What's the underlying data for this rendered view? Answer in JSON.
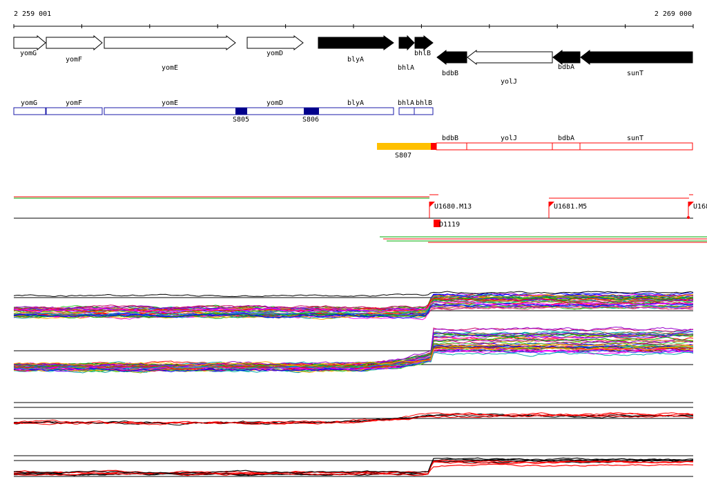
{
  "coords": {
    "start": "2 259 001",
    "end": "2 269 000"
  },
  "genes": [
    {
      "name": "yomG",
      "dir": "fwd",
      "filled": false
    },
    {
      "name": "yomF",
      "dir": "fwd",
      "filled": false
    },
    {
      "name": "yomE",
      "dir": "fwd",
      "filled": false
    },
    {
      "name": "yomD",
      "dir": "fwd",
      "filled": false
    },
    {
      "name": "blyA",
      "dir": "fwd",
      "filled": true
    },
    {
      "name": "bhlA",
      "dir": "fwd",
      "filled": true
    },
    {
      "name": "bhlB",
      "dir": "fwd",
      "filled": true
    },
    {
      "name": "bdbB",
      "dir": "rev",
      "filled": true
    },
    {
      "name": "yolJ",
      "dir": "rev",
      "filled": false
    },
    {
      "name": "bdbA",
      "dir": "rev",
      "filled": true
    },
    {
      "name": "sunT",
      "dir": "rev",
      "filled": true
    }
  ],
  "blue_track": {
    "genes": [
      "yomG",
      "yomF",
      "yomE",
      "yomD",
      "blyA",
      "bhlA",
      "bhlB"
    ],
    "markers": [
      "S805",
      "S806"
    ]
  },
  "red_track": {
    "genes": [
      "bdbB",
      "yolJ",
      "bdbA",
      "sunT"
    ],
    "marker": "S807"
  },
  "flags": [
    "U1680.M13",
    "U1681.M5",
    "U168"
  ],
  "small_marker": "D1119",
  "colors": {
    "blue": "#1a1aa8",
    "darkblue": "#00008b",
    "red": "#ff0000",
    "yellow": "#ffc000",
    "green": "#00aa00",
    "black": "#000000"
  }
}
